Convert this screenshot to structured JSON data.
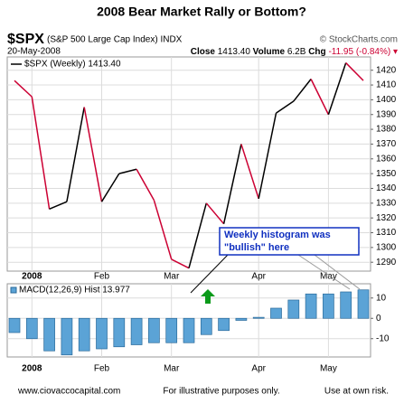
{
  "title": "2008 Bear Market Rally or Bottom?",
  "header": {
    "symbol": "$SPX",
    "name": "(S&P 500 Large Cap Index) INDX",
    "source": "© StockCharts.com",
    "date": "20-May-2008",
    "close_label": "Close",
    "close": "1413.40",
    "volume_label": "Volume",
    "volume": "6.2B",
    "chg_label": "Chg",
    "chg": "-11.95 (-0.84%)"
  },
  "annotation": [
    "Weekly histogram was",
    "\"bullish\" here"
  ],
  "footer": [
    "www.ciovaccocapital.com",
    "For illustrative purposes only.",
    "Use at own risk."
  ],
  "chart_data": [
    {
      "type": "line",
      "legend": "$SPX (Weekly) 1413.40",
      "categories": [
        null,
        "2008",
        null,
        null,
        null,
        "Feb",
        null,
        null,
        null,
        "Mar",
        null,
        null,
        null,
        null,
        "Apr",
        null,
        null,
        null,
        "May",
        null,
        null
      ],
      "values": [
        1413,
        1402,
        1326,
        1331,
        1395,
        1331,
        1350,
        1353,
        1332,
        1292,
        1286,
        1330,
        1316,
        1370,
        1333,
        1391,
        1399,
        1414,
        1390,
        1425,
        1413
      ],
      "up_color": "#000000",
      "down_color": "#cc0033",
      "ylim": [
        1284,
        1429
      ],
      "yticks": [
        1290,
        1300,
        1310,
        1320,
        1330,
        1340,
        1350,
        1360,
        1370,
        1380,
        1390,
        1400,
        1410,
        1420
      ],
      "grid": true
    },
    {
      "type": "bar",
      "legend": "MACD(12,26,9) Hist 13.977",
      "categories": [
        null,
        "2008",
        null,
        null,
        null,
        "Feb",
        null,
        null,
        null,
        "Mar",
        null,
        null,
        null,
        null,
        "Apr",
        null,
        null,
        null,
        "May",
        null,
        null
      ],
      "values": [
        -7,
        -10,
        -16,
        -18,
        -16,
        -15,
        -14,
        -13,
        -12,
        -12,
        -12,
        -8,
        -6,
        -1,
        0.5,
        5,
        9,
        12,
        12,
        13,
        14
      ],
      "color": "#5ba3d6",
      "ylim": [
        -19,
        17
      ],
      "yticks": [
        -10,
        0,
        10
      ],
      "grid": true
    }
  ]
}
